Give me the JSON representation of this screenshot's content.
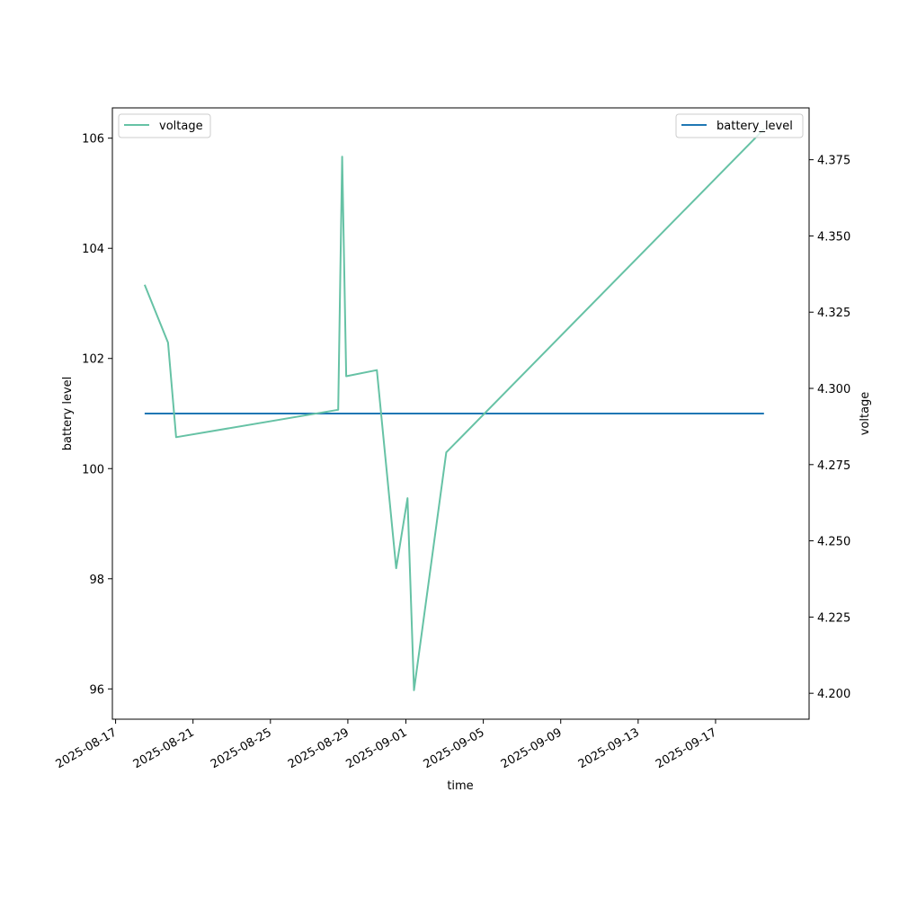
{
  "chart_data": {
    "type": "line",
    "xlabel": "time",
    "ylabel_left": "battery level",
    "ylabel_right": "voltage",
    "x_ticks": [
      "2025-08-17",
      "2025-08-21",
      "2025-08-25",
      "2025-08-29",
      "2025-09-01",
      "2025-09-05",
      "2025-09-09",
      "2025-09-13",
      "2025-09-17"
    ],
    "xlim": [
      "2025-08-16T20:00",
      "2025-09-21T20:00"
    ],
    "ylim_left": [
      95.45,
      106.55
    ],
    "ylim_right": [
      4.1915,
      4.392
    ],
    "left_ticks": [
      "96",
      "98",
      "100",
      "102",
      "104",
      "106"
    ],
    "right_ticks": [
      "4.200",
      "4.225",
      "4.250",
      "4.275",
      "4.300",
      "4.325",
      "4.350",
      "4.375"
    ],
    "grid": false,
    "series": [
      {
        "name": "battery_level",
        "axis": "left",
        "color": "#1f77b4",
        "points": [
          {
            "x": "2025-08-18T12:00",
            "y": 101
          },
          {
            "x": "2025-09-19T12:00",
            "y": 101
          }
        ],
        "legend_loc": "upper right"
      },
      {
        "name": "voltage",
        "axis": "right",
        "color": "#66c2a5",
        "points": [
          {
            "x": "2025-08-18T12:00",
            "y": 4.334
          },
          {
            "x": "2025-08-19T17:00",
            "y": 4.315
          },
          {
            "x": "2025-08-20T03:00",
            "y": 4.284
          },
          {
            "x": "2025-08-28T12:00",
            "y": 4.293
          },
          {
            "x": "2025-08-28T17:00",
            "y": 4.376
          },
          {
            "x": "2025-08-28T22:00",
            "y": 4.304
          },
          {
            "x": "2025-08-30T12:00",
            "y": 4.306
          },
          {
            "x": "2025-08-31T12:00",
            "y": 4.241
          },
          {
            "x": "2025-09-01T02:00",
            "y": 4.264
          },
          {
            "x": "2025-09-01T10:00",
            "y": 4.201
          },
          {
            "x": "2025-09-03T02:00",
            "y": 4.279
          },
          {
            "x": "2025-09-19T12:00",
            "y": 4.385
          }
        ],
        "legend_loc": "upper left"
      }
    ]
  }
}
